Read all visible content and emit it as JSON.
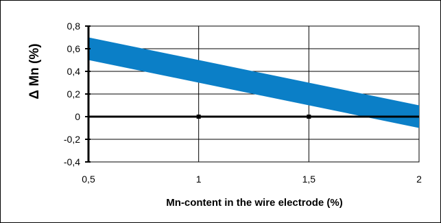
{
  "chart_data": {
    "type": "area",
    "title": "",
    "xlabel": "Mn-content in the wire electrode (%)",
    "ylabel": "Δ Mn (%)",
    "xlim": [
      0.5,
      2
    ],
    "ylim": [
      -0.4,
      0.8
    ],
    "x_ticks": [
      0.5,
      1,
      1.5,
      2
    ],
    "x_tick_labels": [
      "0,5",
      "1",
      "1,5",
      "2"
    ],
    "y_ticks": [
      0.8,
      0.6,
      0.4,
      0.2,
      0,
      -0.2,
      -0.4
    ],
    "y_tick_labels": [
      "0,8",
      "0,6",
      "0,4",
      "0,2",
      "0",
      "-0,2",
      "-0,4"
    ],
    "grid": true,
    "band": {
      "color": "#0b7fc7",
      "x": [
        0.5,
        2
      ],
      "upper": [
        0.7,
        0.1
      ],
      "lower": [
        0.5,
        -0.1
      ]
    },
    "zero_line": {
      "y": 0,
      "markers_x": [
        1,
        1.5
      ]
    }
  }
}
